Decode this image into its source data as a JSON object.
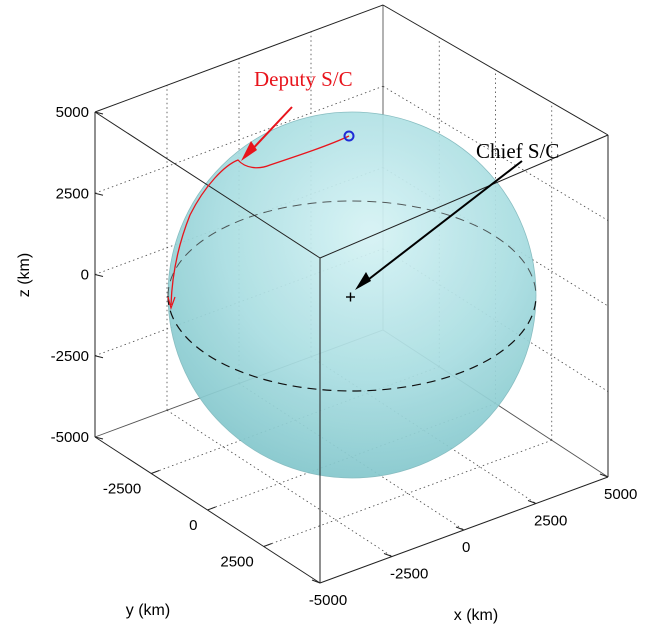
{
  "chart_data": {
    "type": "scatter",
    "title": "",
    "projection": "3d",
    "xlabel": "x (km)",
    "ylabel": "y (km)",
    "zlabel": "z (km)",
    "xlim": [
      -5000,
      5000
    ],
    "ylim": [
      -5000,
      5000
    ],
    "zlim": [
      -5000,
      5000
    ],
    "x_ticks": [
      "-5000",
      "-2500",
      "0",
      "2500",
      "5000"
    ],
    "y_ticks": [
      "-2500",
      "0",
      "2500"
    ],
    "z_ticks": [
      "-5000",
      "-2500",
      "0",
      "2500",
      "5000"
    ],
    "grid": true,
    "sphere": {
      "radius_km": 4800,
      "color": "#9fd8dc"
    },
    "annotations": [
      {
        "text": "Deputy S/C",
        "color": "#e8141c"
      },
      {
        "text": "Chief S/C",
        "color": "#000000"
      }
    ],
    "deputy_marker_color": "#1f2bd6",
    "deputy_path_color": "#e8141c"
  }
}
